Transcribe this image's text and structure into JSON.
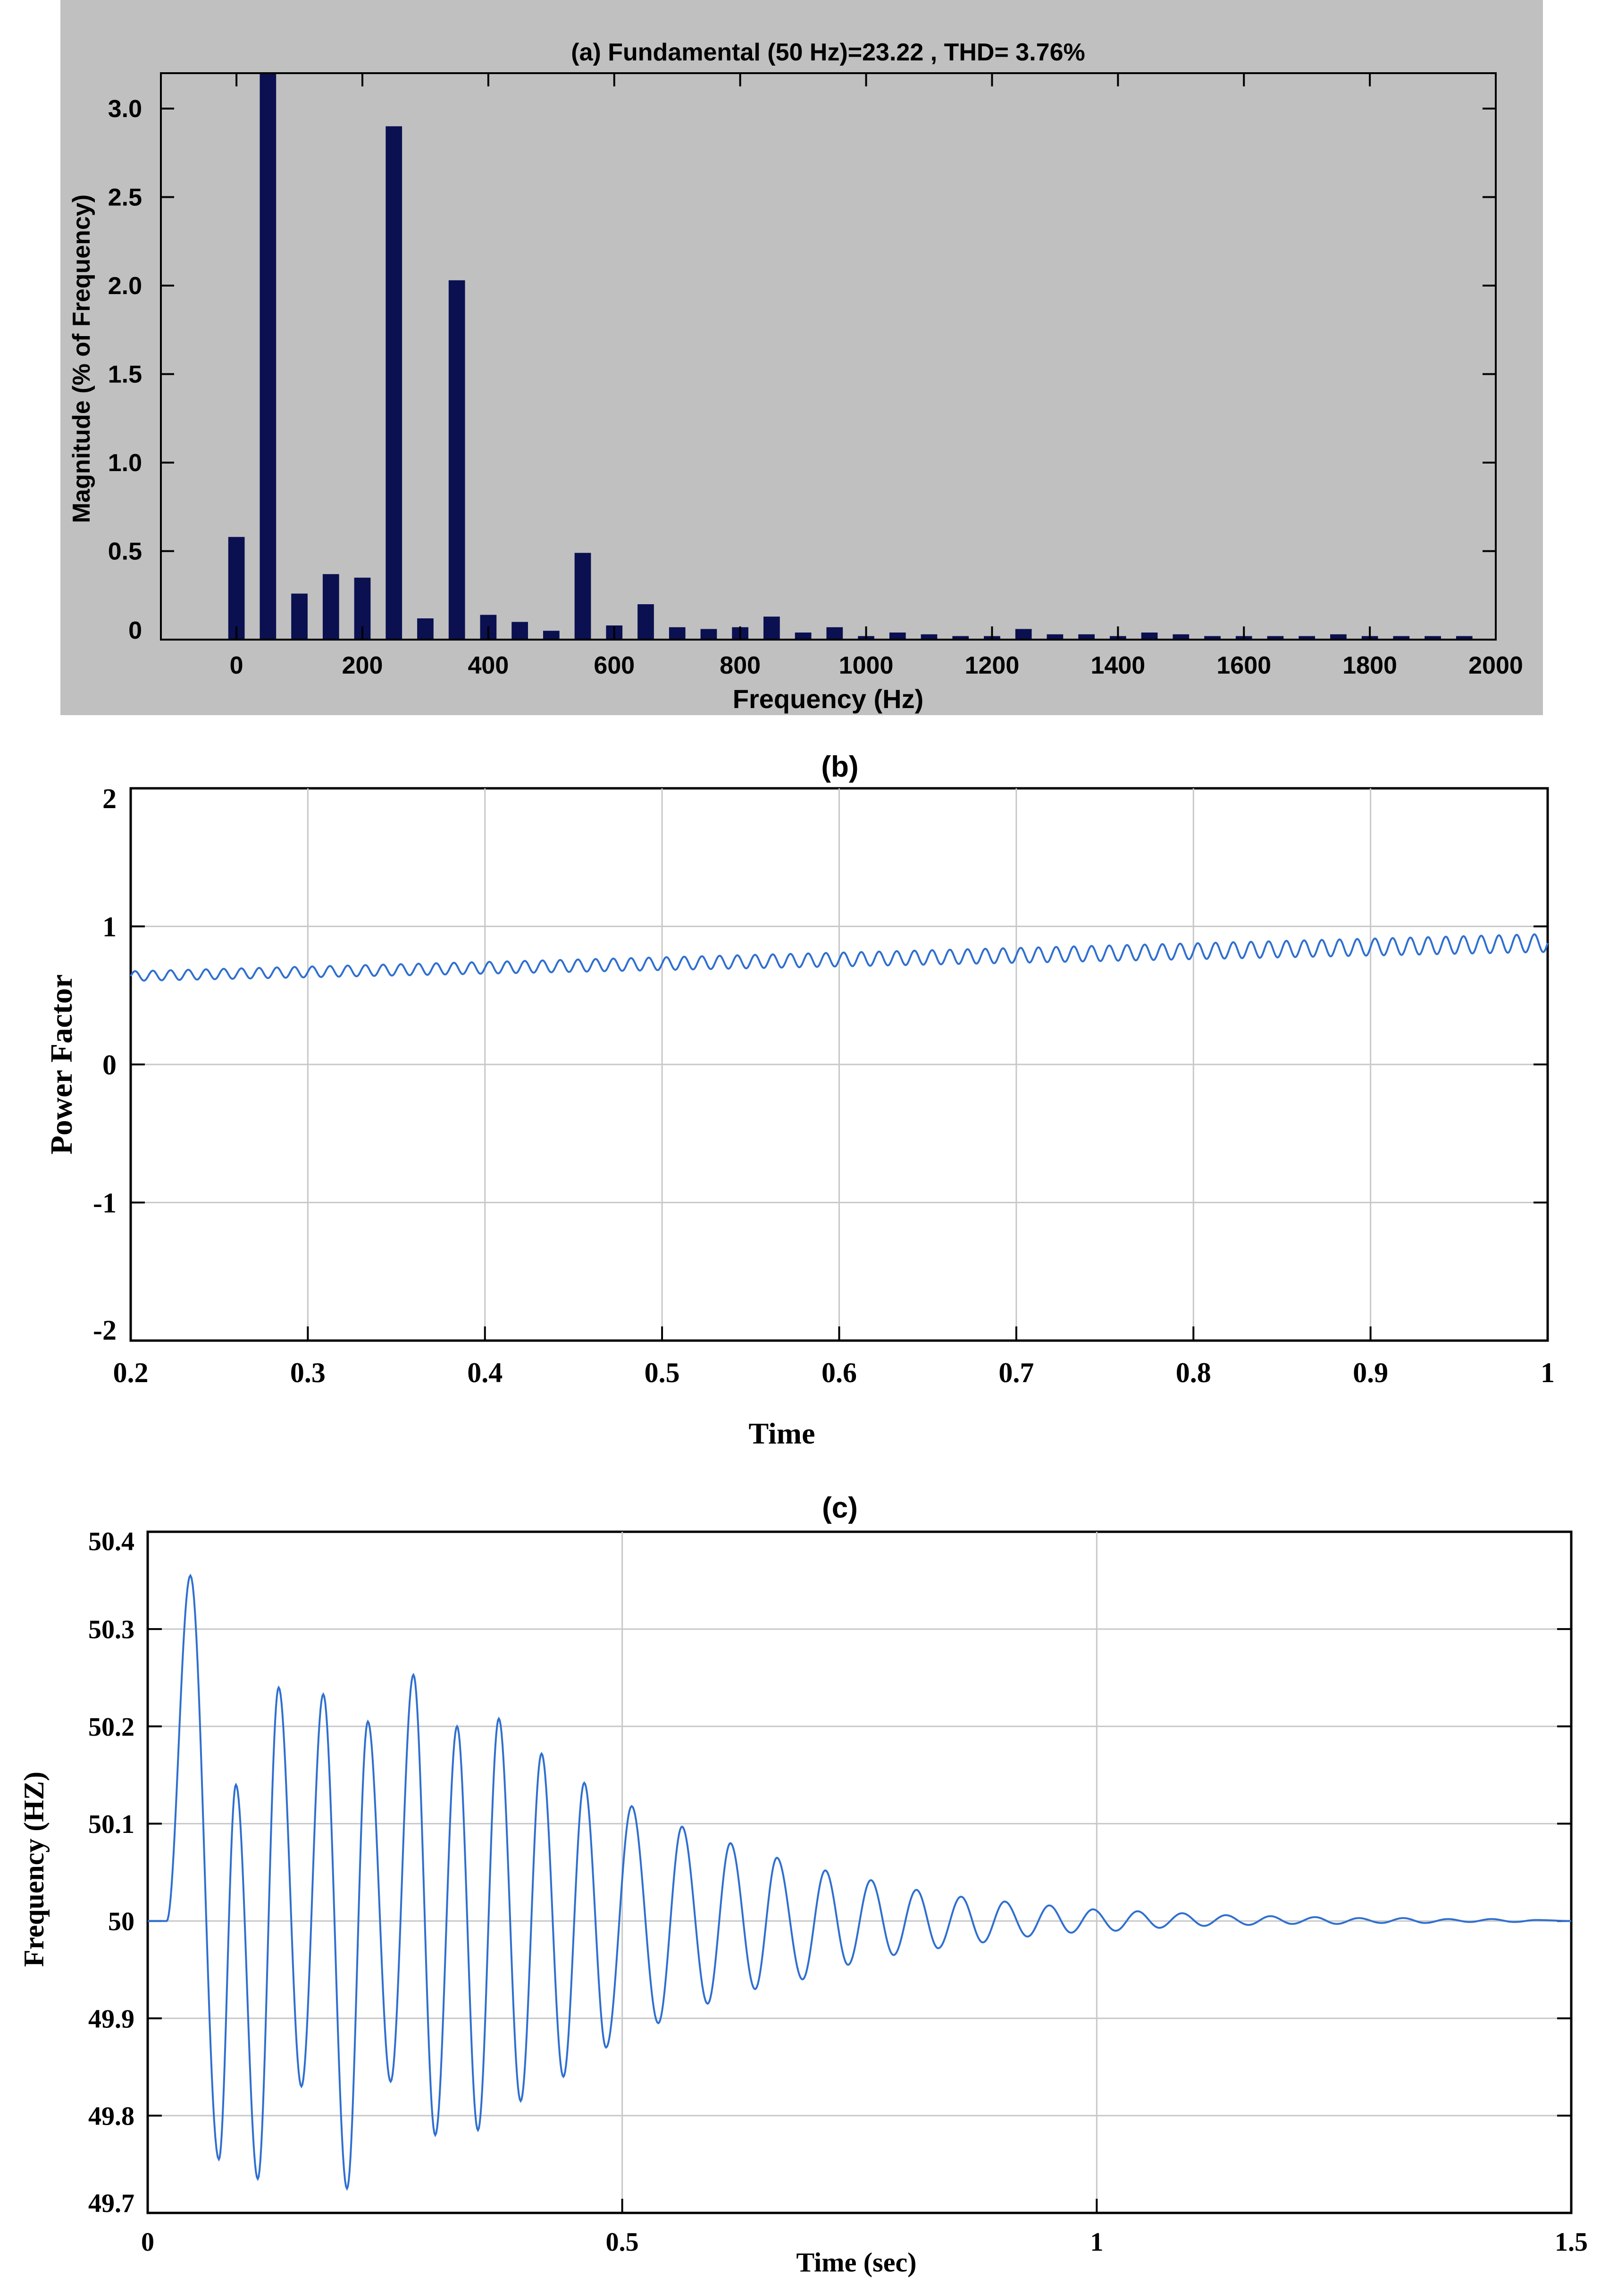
{
  "colors": {
    "panel_a_background": "#c0c0c0",
    "bar_fill": "#0a1050",
    "line_color": "#2f6fd0",
    "grid_color": "#c8c8c8",
    "axes_color": "#000000"
  },
  "chart_data": [
    {
      "type": "bar",
      "title": "(a) Fundamental (50 Hz)=23.22 , THD= 3.76%",
      "xlabel": "Frequency (Hz)",
      "ylabel": "Magnitude (% of Frequency)",
      "xlim": [
        -120,
        2000
      ],
      "ylim": [
        0,
        3.2
      ],
      "xticks": [
        0,
        200,
        400,
        600,
        800,
        1000,
        1200,
        1400,
        1600,
        1800,
        2000
      ],
      "xtick_labels": [
        "0",
        "200",
        "400",
        "600",
        "800",
        "1000",
        "1200",
        "1400",
        "1600",
        "1800",
        "2000"
      ],
      "yticks": [
        0,
        0.5,
        1.0,
        1.5,
        2.0,
        2.5,
        3.0
      ],
      "ytick_labels": [
        "0",
        "0.5",
        "1.0",
        "1.5",
        "2.0",
        "2.5",
        "3.0"
      ],
      "grid": false,
      "bar_width_hz": 26,
      "x": [
        0,
        50,
        100,
        150,
        200,
        250,
        300,
        350,
        400,
        450,
        500,
        550,
        600,
        650,
        700,
        750,
        800,
        850,
        900,
        950,
        1000,
        1050,
        1100,
        1150,
        1200,
        1250,
        1300,
        1350,
        1400,
        1450,
        1500,
        1550,
        1600,
        1650,
        1700,
        1750,
        1800,
        1850,
        1900,
        1950
      ],
      "values": [
        0.58,
        3.2,
        0.26,
        0.37,
        0.35,
        2.9,
        0.12,
        2.03,
        0.14,
        0.1,
        0.05,
        0.49,
        0.08,
        0.2,
        0.07,
        0.06,
        0.07,
        0.13,
        0.04,
        0.07,
        0.02,
        0.04,
        0.03,
        0.02,
        0.02,
        0.06,
        0.03,
        0.03,
        0.02,
        0.04,
        0.03,
        0.02,
        0.02,
        0.02,
        0.02,
        0.03,
        0.02,
        0.02,
        0.02,
        0.02
      ]
    },
    {
      "type": "line",
      "title": "(b)",
      "xlabel": "Time",
      "ylabel": "Power Factor",
      "xlim": [
        0.2,
        1.0
      ],
      "ylim": [
        -2,
        2
      ],
      "xticks": [
        0.2,
        0.3,
        0.4,
        0.5,
        0.6,
        0.7,
        0.8,
        0.9,
        1.0
      ],
      "xtick_labels": [
        "0.2",
        "0.3",
        "0.4",
        "0.5",
        "0.6",
        "0.7",
        "0.8",
        "0.9",
        "1"
      ],
      "yticks": [
        -2,
        -1,
        0,
        1,
        2
      ],
      "ytick_labels": [
        "-2",
        "-1",
        "0",
        "1",
        "2"
      ],
      "grid": true,
      "series": [
        {
          "mean_start": 0.64,
          "mean_end": 0.88,
          "ripple_amplitude_start": 0.035,
          "ripple_amplitude_end": 0.065,
          "ripple_frequency_hz": 100
        }
      ]
    },
    {
      "type": "line",
      "title": "(c)",
      "xlabel": "Time (sec)",
      "ylabel": "Frequency (HZ)",
      "xlim": [
        0,
        1.5
      ],
      "ylim": [
        49.7,
        50.4
      ],
      "xticks": [
        0,
        0.5,
        1.0,
        1.5
      ],
      "xtick_labels": [
        "0",
        "0.5",
        "1",
        "1.5"
      ],
      "yticks": [
        49.7,
        49.8,
        49.9,
        50.0,
        50.1,
        50.2,
        50.3,
        50.4
      ],
      "ytick_labels": [
        "49.7",
        "49.8",
        "49.9",
        "50",
        "50.1",
        "50.2",
        "50.3",
        "50.4"
      ],
      "grid": true,
      "series": [
        {
          "steady_value": 50.0,
          "extrema": [
            [
              0.0,
              50.0
            ],
            [
              0.02,
              50.0
            ],
            [
              0.045,
              50.355
            ],
            [
              0.075,
              49.755
            ],
            [
              0.093,
              50.14
            ],
            [
              0.116,
              49.735
            ],
            [
              0.138,
              50.24
            ],
            [
              0.162,
              49.83
            ],
            [
              0.185,
              50.233
            ],
            [
              0.21,
              49.725
            ],
            [
              0.232,
              50.205
            ],
            [
              0.256,
              49.835
            ],
            [
              0.28,
              50.253
            ],
            [
              0.303,
              49.78
            ],
            [
              0.326,
              50.2
            ],
            [
              0.348,
              49.785
            ],
            [
              0.37,
              50.208
            ],
            [
              0.393,
              49.815
            ],
            [
              0.415,
              50.172
            ],
            [
              0.438,
              49.84
            ],
            [
              0.46,
              50.142
            ],
            [
              0.483,
              49.87
            ],
            [
              0.51,
              50.118
            ],
            [
              0.538,
              49.895
            ],
            [
              0.563,
              50.097
            ],
            [
              0.59,
              49.915
            ],
            [
              0.614,
              50.08
            ],
            [
              0.64,
              49.93
            ],
            [
              0.663,
              50.065
            ],
            [
              0.69,
              49.94
            ],
            [
              0.714,
              50.052
            ],
            [
              0.738,
              49.955
            ],
            [
              0.762,
              50.042
            ],
            [
              0.786,
              49.965
            ],
            [
              0.81,
              50.032
            ],
            [
              0.833,
              49.972
            ],
            [
              0.857,
              50.025
            ],
            [
              0.88,
              49.978
            ],
            [
              0.903,
              50.02
            ],
            [
              0.927,
              49.984
            ],
            [
              0.95,
              50.016
            ],
            [
              0.973,
              49.988
            ],
            [
              0.996,
              50.012
            ],
            [
              1.02,
              49.99
            ],
            [
              1.043,
              50.01
            ],
            [
              1.066,
              49.993
            ],
            [
              1.09,
              50.008
            ],
            [
              1.113,
              49.995
            ],
            [
              1.136,
              50.006
            ],
            [
              1.16,
              49.996
            ],
            [
              1.183,
              50.005
            ],
            [
              1.206,
              49.997
            ],
            [
              1.23,
              50.004
            ],
            [
              1.253,
              49.997
            ],
            [
              1.276,
              50.003
            ],
            [
              1.3,
              49.998
            ],
            [
              1.323,
              50.003
            ],
            [
              1.346,
              49.998
            ],
            [
              1.37,
              50.002
            ],
            [
              1.393,
              49.999
            ],
            [
              1.416,
              50.002
            ],
            [
              1.44,
              49.999
            ],
            [
              1.463,
              50.001
            ],
            [
              1.5,
              50.0
            ]
          ]
        }
      ]
    }
  ]
}
